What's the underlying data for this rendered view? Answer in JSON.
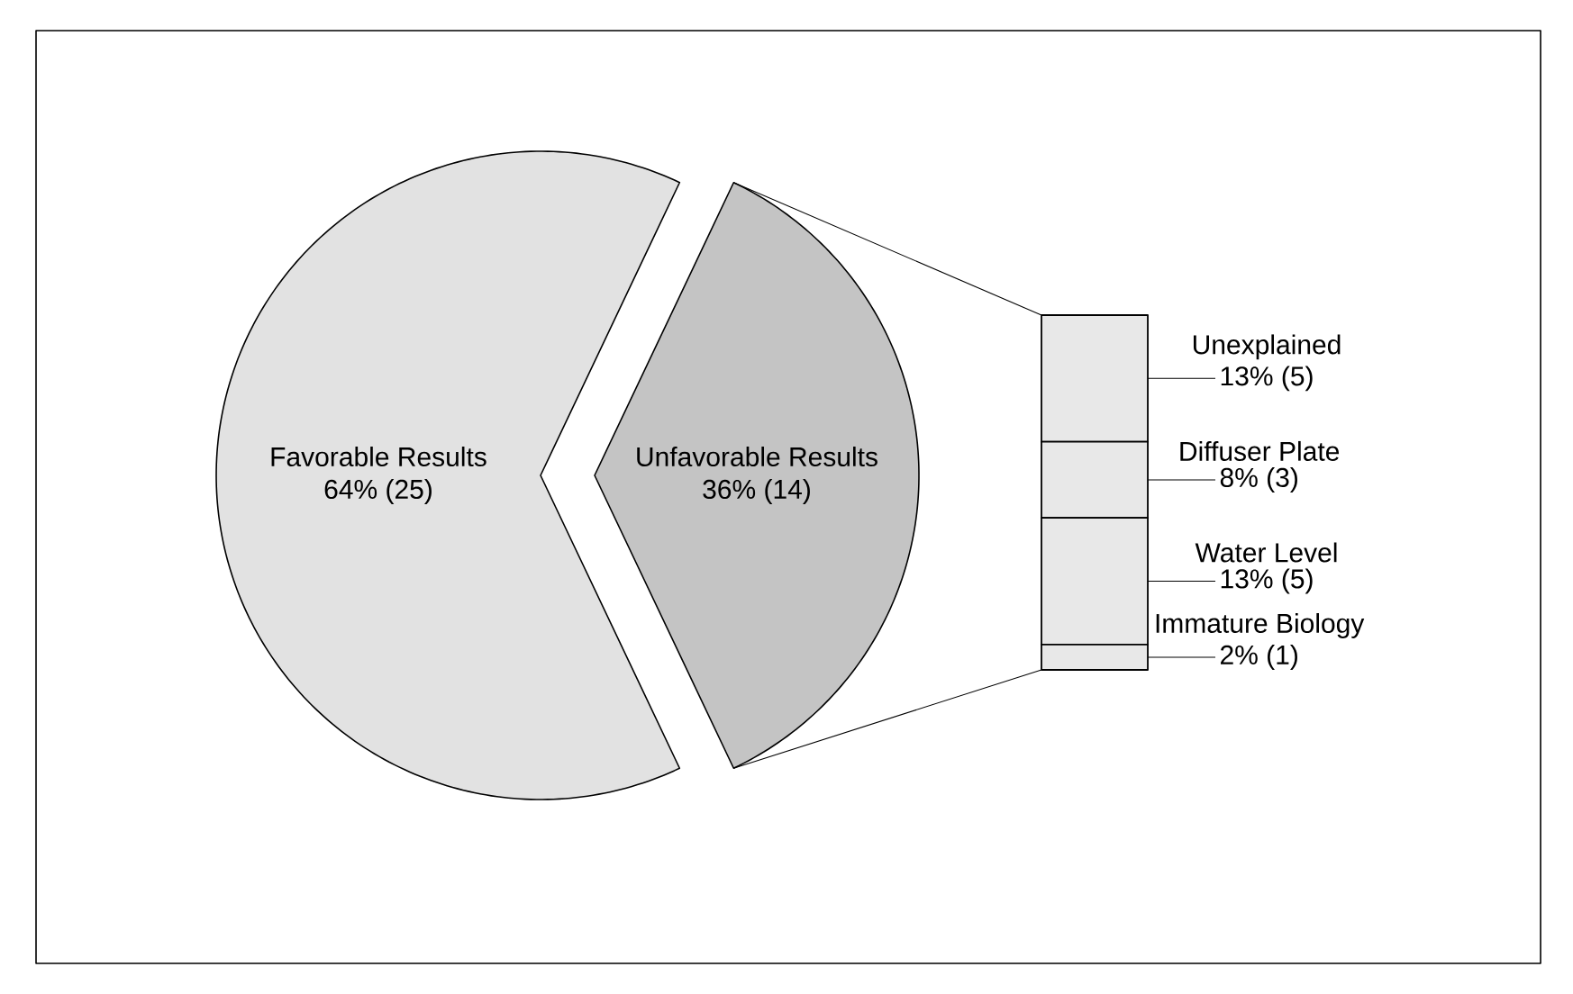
{
  "chart_data": [
    {
      "type": "pie",
      "categories": [
        "Favorable Results",
        "Unfavorable Results"
      ],
      "values": [
        25,
        14
      ],
      "value_labels": [
        "64% (25)",
        "36% (14)"
      ],
      "colors": [
        "#e2e2e2",
        "#c4c4c4"
      ]
    },
    {
      "type": "bar",
      "stacked": true,
      "categories": [
        null
      ],
      "series": [
        {
          "name": "Immature Biology",
          "color": "#e8e8e8",
          "values": [
            1
          ],
          "value_labels": [
            "2% (1)"
          ]
        },
        {
          "name": "Water Level",
          "color": "#e8e8e8",
          "values": [
            5
          ],
          "value_labels": [
            "13% (5)"
          ]
        },
        {
          "name": "Diffuser Plate",
          "color": "#e8e8e8",
          "values": [
            3
          ],
          "value_labels": [
            "8% (3)"
          ]
        },
        {
          "name": "Unexplained",
          "color": "#e8e8e8",
          "values": [
            5
          ],
          "value_labels": [
            "13% (5)"
          ]
        }
      ]
    }
  ]
}
